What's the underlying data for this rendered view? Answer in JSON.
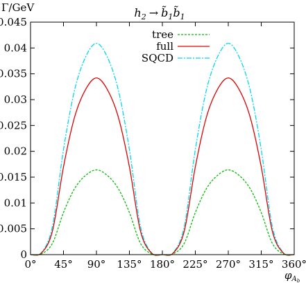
{
  "chart_data": {
    "type": "line",
    "title": {
      "main": "h",
      "main_sub": "2",
      "arrow": "→",
      "product": "b̃",
      "product_sub": "1"
    },
    "ylabel": "Γ/GeV",
    "xlabel": {
      "main": "φ",
      "sub": "A",
      "subsub": "b"
    },
    "x_ticks": [
      "0°",
      "45°",
      "90°",
      "135°",
      "180°",
      "225°",
      "270°",
      "315°",
      "360°"
    ],
    "x_tick_values": [
      0,
      45,
      90,
      135,
      180,
      225,
      270,
      315,
      360
    ],
    "y_ticks": [
      "0",
      "0.005",
      "0.01",
      "0.015",
      "0.02",
      "0.025",
      "0.03",
      "0.035",
      "0.04",
      "0.045"
    ],
    "y_tick_values": [
      0,
      0.005,
      0.01,
      0.015,
      0.02,
      0.025,
      0.03,
      0.035,
      0.04,
      0.045
    ],
    "xlim": [
      0,
      360
    ],
    "ylim": [
      0,
      0.045
    ],
    "grid": false,
    "legend_position": "top-center",
    "x": [
      0,
      15,
      30,
      45,
      60,
      75,
      90,
      105,
      120,
      135,
      150,
      165,
      180,
      195,
      210,
      225,
      240,
      255,
      270,
      285,
      300,
      315,
      330,
      345,
      360
    ],
    "series": [
      {
        "name": "tree",
        "color": "#00bb00",
        "dash": "3,2",
        "values": [
          0,
          0.00016,
          0.00222,
          0.00815,
          0.01274,
          0.01531,
          0.0164,
          0.01531,
          0.01274,
          0.00815,
          0.00222,
          0.00016,
          0,
          0.00016,
          0.00222,
          0.00815,
          0.01274,
          0.01531,
          0.0164,
          0.01531,
          0.01274,
          0.00815,
          0.00222,
          0.00016,
          0
        ]
      },
      {
        "name": "full",
        "color": "#dd0000",
        "dash": "",
        "values": [
          0,
          0.00033,
          0.00461,
          0.017,
          0.02655,
          0.03192,
          0.0342,
          0.03192,
          0.02655,
          0.017,
          0.00461,
          0.00033,
          0,
          0.00033,
          0.00461,
          0.017,
          0.02655,
          0.03192,
          0.0342,
          0.03192,
          0.02655,
          0.017,
          0.00461,
          0.00033,
          0
        ]
      },
      {
        "name": "SQCD",
        "color": "#00d8ee",
        "dash": "7,2,2,2",
        "values": [
          0,
          0.0004,
          0.00553,
          0.02033,
          0.03177,
          0.03819,
          0.0409,
          0.03819,
          0.03177,
          0.02033,
          0.00553,
          0.0004,
          0,
          0.0004,
          0.00553,
          0.02033,
          0.03177,
          0.03819,
          0.0409,
          0.03819,
          0.03177,
          0.02033,
          0.00553,
          0.0004,
          0
        ]
      }
    ]
  }
}
